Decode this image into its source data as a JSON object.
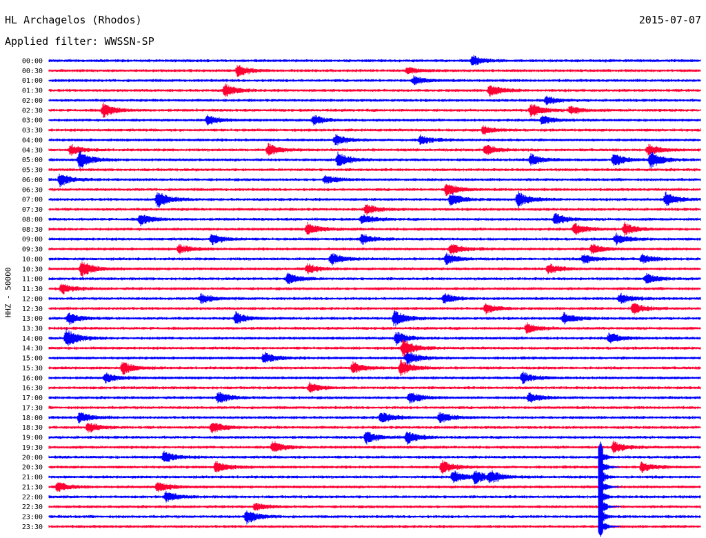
{
  "header": {
    "station": "HL Archagelos (Rhodos)",
    "date": "2015-07-07",
    "filter": "Applied filter: WWSSN-SP"
  },
  "chart_data": {
    "type": "line",
    "subtype": "helicorder-seismogram",
    "ylabel": "HHZ - 50000",
    "row_labels": [
      "00:00",
      "00:30",
      "01:00",
      "01:30",
      "02:00",
      "02:30",
      "03:00",
      "03:30",
      "04:00",
      "04:30",
      "05:00",
      "05:30",
      "06:00",
      "06:30",
      "07:00",
      "07:30",
      "08:00",
      "08:30",
      "09:00",
      "09:30",
      "10:00",
      "10:30",
      "11:00",
      "11:30",
      "12:00",
      "12:30",
      "13:00",
      "13:30",
      "14:00",
      "14:30",
      "15:00",
      "15:30",
      "16:00",
      "16:30",
      "17:00",
      "17:30",
      "18:00",
      "18:30",
      "19:00",
      "19:30",
      "20:00",
      "20:30",
      "21:00",
      "21:30",
      "22:00",
      "22:30",
      "23:00",
      "23:30"
    ],
    "row_minutes": 30,
    "colors": [
      "#0000ff",
      "#ff0033"
    ],
    "grid": false,
    "events": [
      {
        "row": 0,
        "minute": 19.5,
        "amp": 1.0
      },
      {
        "row": 1,
        "minute": 8.7,
        "amp": 1.2
      },
      {
        "row": 1,
        "minute": 16.5,
        "amp": 0.7
      },
      {
        "row": 2,
        "minute": 16.8,
        "amp": 0.8
      },
      {
        "row": 3,
        "minute": 8.1,
        "amp": 1.3
      },
      {
        "row": 3,
        "minute": 20.3,
        "amp": 1.2
      },
      {
        "row": 4,
        "minute": 22.9,
        "amp": 0.8
      },
      {
        "row": 5,
        "minute": 2.5,
        "amp": 1.5
      },
      {
        "row": 5,
        "minute": 22.2,
        "amp": 1.4
      },
      {
        "row": 5,
        "minute": 24.0,
        "amp": 0.8
      },
      {
        "row": 6,
        "minute": 7.3,
        "amp": 0.9
      },
      {
        "row": 6,
        "minute": 12.2,
        "amp": 0.9
      },
      {
        "row": 6,
        "minute": 22.7,
        "amp": 0.9
      },
      {
        "row": 7,
        "minute": 20.0,
        "amp": 0.8
      },
      {
        "row": 8,
        "minute": 13.2,
        "amp": 1.0
      },
      {
        "row": 8,
        "minute": 17.1,
        "amp": 0.9
      },
      {
        "row": 9,
        "minute": 1.0,
        "amp": 1.0
      },
      {
        "row": 9,
        "minute": 10.1,
        "amp": 1.3
      },
      {
        "row": 9,
        "minute": 20.1,
        "amp": 1.2
      },
      {
        "row": 9,
        "minute": 27.6,
        "amp": 1.1
      },
      {
        "row": 10,
        "minute": 1.4,
        "amp": 1.8
      },
      {
        "row": 10,
        "minute": 13.3,
        "amp": 1.5
      },
      {
        "row": 10,
        "minute": 22.2,
        "amp": 1.2
      },
      {
        "row": 10,
        "minute": 26.0,
        "amp": 1.4
      },
      {
        "row": 10,
        "minute": 27.7,
        "amp": 1.8
      },
      {
        "row": 12,
        "minute": 0.5,
        "amp": 1.3
      },
      {
        "row": 12,
        "minute": 12.7,
        "amp": 0.9
      },
      {
        "row": 13,
        "minute": 18.3,
        "amp": 1.3
      },
      {
        "row": 14,
        "minute": 5.0,
        "amp": 1.7
      },
      {
        "row": 14,
        "minute": 18.5,
        "amp": 1.3
      },
      {
        "row": 14,
        "minute": 21.6,
        "amp": 1.6
      },
      {
        "row": 14,
        "minute": 28.4,
        "amp": 1.4
      },
      {
        "row": 15,
        "minute": 14.6,
        "amp": 1.0
      },
      {
        "row": 16,
        "minute": 4.2,
        "amp": 1.2
      },
      {
        "row": 16,
        "minute": 14.4,
        "amp": 1.0
      },
      {
        "row": 16,
        "minute": 23.3,
        "amp": 1.2
      },
      {
        "row": 17,
        "minute": 11.9,
        "amp": 1.2
      },
      {
        "row": 17,
        "minute": 24.2,
        "amp": 1.2
      },
      {
        "row": 17,
        "minute": 26.5,
        "amp": 1.2
      },
      {
        "row": 18,
        "minute": 7.5,
        "amp": 1.1
      },
      {
        "row": 18,
        "minute": 14.4,
        "amp": 1.1
      },
      {
        "row": 18,
        "minute": 26.1,
        "amp": 1.1
      },
      {
        "row": 19,
        "minute": 6.0,
        "amp": 0.9
      },
      {
        "row": 19,
        "minute": 18.5,
        "amp": 1.1
      },
      {
        "row": 19,
        "minute": 25.0,
        "amp": 1.0
      },
      {
        "row": 20,
        "minute": 13.0,
        "amp": 1.2
      },
      {
        "row": 20,
        "minute": 18.3,
        "amp": 1.1
      },
      {
        "row": 20,
        "minute": 24.6,
        "amp": 1.0
      },
      {
        "row": 20,
        "minute": 27.3,
        "amp": 0.9
      },
      {
        "row": 21,
        "minute": 1.5,
        "amp": 1.6
      },
      {
        "row": 21,
        "minute": 11.9,
        "amp": 1.0
      },
      {
        "row": 21,
        "minute": 23.0,
        "amp": 1.0
      },
      {
        "row": 22,
        "minute": 11.0,
        "amp": 1.2
      },
      {
        "row": 22,
        "minute": 27.5,
        "amp": 1.0
      },
      {
        "row": 23,
        "minute": 0.6,
        "amp": 1.0
      },
      {
        "row": 24,
        "minute": 7.0,
        "amp": 1.0
      },
      {
        "row": 24,
        "minute": 18.2,
        "amp": 1.0
      },
      {
        "row": 24,
        "minute": 26.3,
        "amp": 1.1
      },
      {
        "row": 25,
        "minute": 20.1,
        "amp": 1.0
      },
      {
        "row": 25,
        "minute": 26.9,
        "amp": 1.1
      },
      {
        "row": 26,
        "minute": 0.9,
        "amp": 1.2
      },
      {
        "row": 26,
        "minute": 8.6,
        "amp": 1.2
      },
      {
        "row": 26,
        "minute": 15.9,
        "amp": 1.6
      },
      {
        "row": 26,
        "minute": 23.7,
        "amp": 1.2
      },
      {
        "row": 27,
        "minute": 22.0,
        "amp": 1.0
      },
      {
        "row": 28,
        "minute": 0.8,
        "amp": 2.0
      },
      {
        "row": 28,
        "minute": 16.0,
        "amp": 1.3
      },
      {
        "row": 28,
        "minute": 25.8,
        "amp": 1.1
      },
      {
        "row": 29,
        "minute": 16.3,
        "amp": 2.0
      },
      {
        "row": 30,
        "minute": 9.9,
        "amp": 1.2
      },
      {
        "row": 30,
        "minute": 16.5,
        "amp": 1.4
      },
      {
        "row": 31,
        "minute": 3.4,
        "amp": 1.3
      },
      {
        "row": 31,
        "minute": 14.0,
        "amp": 1.2
      },
      {
        "row": 31,
        "minute": 16.2,
        "amp": 1.6
      },
      {
        "row": 32,
        "minute": 2.6,
        "amp": 1.0
      },
      {
        "row": 32,
        "minute": 21.8,
        "amp": 1.2
      },
      {
        "row": 33,
        "minute": 12.0,
        "amp": 1.0
      },
      {
        "row": 34,
        "minute": 7.8,
        "amp": 1.2
      },
      {
        "row": 34,
        "minute": 16.6,
        "amp": 1.2
      },
      {
        "row": 34,
        "minute": 22.1,
        "amp": 1.0
      },
      {
        "row": 36,
        "minute": 1.4,
        "amp": 1.1
      },
      {
        "row": 36,
        "minute": 15.3,
        "amp": 1.2
      },
      {
        "row": 36,
        "minute": 18.0,
        "amp": 1.1
      },
      {
        "row": 37,
        "minute": 1.8,
        "amp": 1.0
      },
      {
        "row": 37,
        "minute": 7.5,
        "amp": 1.2
      },
      {
        "row": 38,
        "minute": 14.6,
        "amp": 1.3
      },
      {
        "row": 38,
        "minute": 16.5,
        "amp": 1.3
      },
      {
        "row": 39,
        "minute": 10.3,
        "amp": 1.2
      },
      {
        "row": 39,
        "minute": 26.0,
        "amp": 1.2
      },
      {
        "row": 40,
        "minute": 5.3,
        "amp": 1.2
      },
      {
        "row": 41,
        "minute": 7.7,
        "amp": 1.2
      },
      {
        "row": 41,
        "minute": 18.1,
        "amp": 1.3
      },
      {
        "row": 41,
        "minute": 27.3,
        "amp": 1.1
      },
      {
        "row": 42,
        "minute": 18.6,
        "amp": 1.3
      },
      {
        "row": 42,
        "minute": 19.6,
        "amp": 1.3
      },
      {
        "row": 42,
        "minute": 20.3,
        "amp": 1.2
      },
      {
        "row": 43,
        "minute": 0.4,
        "amp": 1.0
      },
      {
        "row": 43,
        "minute": 5.0,
        "amp": 1.0
      },
      {
        "row": 44,
        "minute": 5.4,
        "amp": 1.0
      },
      {
        "row": 45,
        "minute": 9.5,
        "amp": 0.7
      },
      {
        "row": 46,
        "minute": 9.1,
        "amp": 1.5
      }
    ],
    "major_event": {
      "start_row": 39,
      "end_row": 47,
      "minute": 25.4,
      "amp": 13.0
    }
  }
}
